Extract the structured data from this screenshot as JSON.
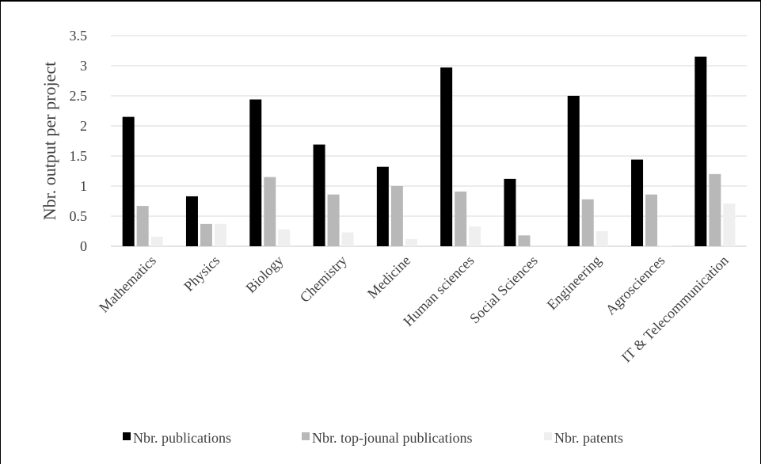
{
  "chart_data": {
    "type": "bar",
    "ylabel": "Nbr. output per project",
    "ylim": [
      0,
      3.5
    ],
    "yticks": [
      "0",
      "0.5",
      "1",
      "1.5",
      "2",
      "2.5",
      "3",
      "3.5"
    ],
    "grid": true,
    "legend_position": "bottom",
    "categories": [
      "Mathematics",
      "Physics",
      "Biology",
      "Chemistry",
      "Medicine",
      "Human sciences",
      "Social Sciences",
      "Engineering",
      "Agrosciences",
      "IT & Telecommunication"
    ],
    "series": [
      {
        "name": "Nbr. publications",
        "color": "#000000",
        "values": [
          2.15,
          0.83,
          2.44,
          1.69,
          1.32,
          2.97,
          1.12,
          2.5,
          1.44,
          3.15
        ]
      },
      {
        "name": "Nbr. top-jounal publications",
        "color": "#b8b8b8",
        "values": [
          0.67,
          0.37,
          1.15,
          0.86,
          1.0,
          0.91,
          0.18,
          0.78,
          0.86,
          1.2
        ]
      },
      {
        "name": "Nbr. patents",
        "color": "#efefef",
        "values": [
          0.16,
          0.37,
          0.28,
          0.23,
          0.12,
          0.33,
          0.0,
          0.25,
          0.01,
          0.71
        ]
      }
    ]
  }
}
